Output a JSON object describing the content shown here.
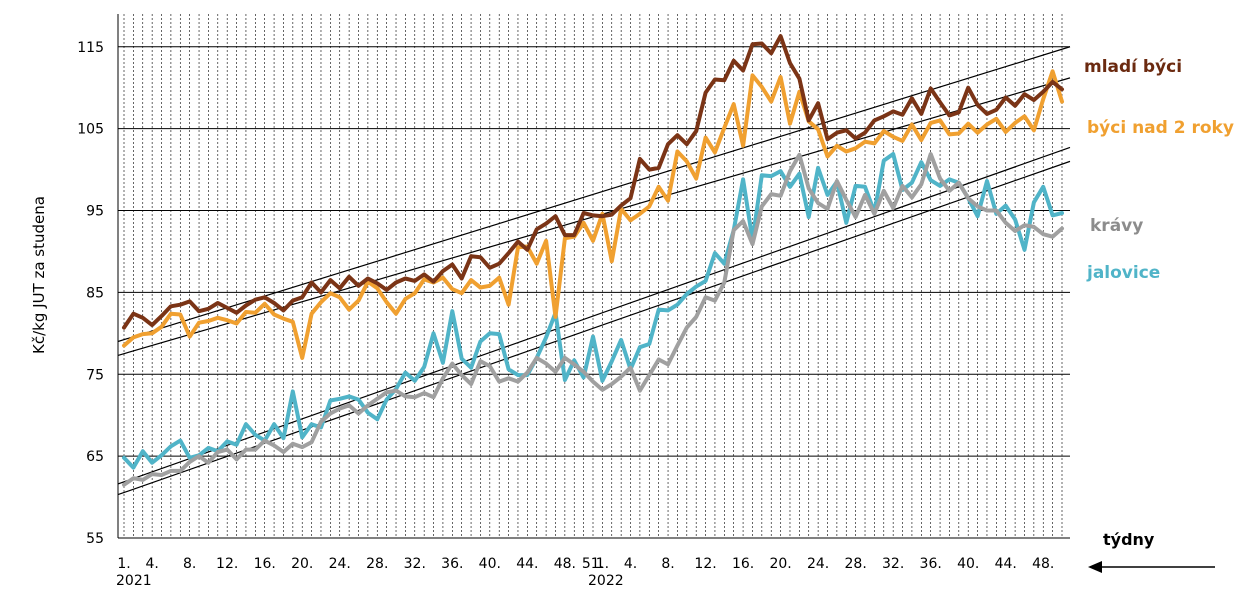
{
  "chart_data": {
    "type": "line",
    "ylabel": "Kč/kg JUT za studena",
    "ylim": [
      55,
      119
    ],
    "yticks": [
      "55",
      "65",
      "75",
      "85",
      "95",
      "105",
      "115"
    ],
    "xtick_labels": [
      "1.",
      "4.",
      "8.",
      "12.",
      "16.",
      "20.",
      "24.",
      "28.",
      "32.",
      "36.",
      "40.",
      "44.",
      "48.",
      "51.",
      "1.",
      "4.",
      "8.",
      "12.",
      "16.",
      "20.",
      "24.",
      "28.",
      "32.",
      "36.",
      "40.",
      "44.",
      "48."
    ],
    "year_labels": [
      "2021",
      "2022"
    ],
    "axis_caption": "týdny",
    "grid": true,
    "legend_placement": "right",
    "series": [
      {
        "name": "mladí býci",
        "color": "#7b3416",
        "values": [
          80.7,
          82.4,
          81.9,
          81.0,
          82.1,
          83.3,
          83.5,
          83.9,
          82.7,
          83.0,
          83.7,
          83.1,
          82.5,
          83.4,
          84.1,
          84.4,
          83.7,
          82.8,
          84.0,
          84.4,
          86.2,
          85.0,
          86.5,
          85.5,
          86.9,
          85.8,
          86.7,
          86.1,
          85.3,
          86.2,
          86.7,
          86.4,
          87.2,
          86.3,
          87.6,
          88.4,
          86.7,
          89.4,
          89.3,
          88.0,
          88.5,
          89.8,
          91.2,
          90.2,
          92.7,
          93.4,
          94.3,
          92.0,
          92.0,
          94.7,
          94.4,
          94.3,
          94.5,
          95.6,
          96.5,
          101.3,
          100.0,
          100.2,
          103.1,
          104.2,
          103.1,
          104.7,
          109.4,
          111.0,
          110.9,
          113.3,
          112.1,
          115.3,
          115.4,
          114.2,
          116.3,
          113.0,
          111.1,
          106.0,
          108.1,
          103.7,
          104.5,
          104.8,
          103.8,
          104.5,
          106.0,
          106.5,
          107.1,
          106.7,
          108.7,
          106.8,
          109.9,
          108.2,
          106.6,
          107.0,
          110.0,
          107.9,
          106.8,
          107.3,
          108.8,
          107.8,
          109.2,
          108.5,
          109.5,
          110.7,
          109.8
        ]
      },
      {
        "name": "býci nad 2 roky",
        "color": "#f0a030",
        "values": [
          78.5,
          79.5,
          79.9,
          80.0,
          80.8,
          82.4,
          82.3,
          79.6,
          81.3,
          81.5,
          81.9,
          81.6,
          81.2,
          82.6,
          82.5,
          83.6,
          82.3,
          81.8,
          81.4,
          77.0,
          82.4,
          83.8,
          84.9,
          84.4,
          82.9,
          84.0,
          86.3,
          85.5,
          83.8,
          82.4,
          84.2,
          84.9,
          86.6,
          86.2,
          86.8,
          85.4,
          84.9,
          86.5,
          85.6,
          85.8,
          86.8,
          83.5,
          90.5,
          90.6,
          88.5,
          91.3,
          82.0,
          91.6,
          91.8,
          93.5,
          91.3,
          94.6,
          88.8,
          95.2,
          93.8,
          94.6,
          95.5,
          97.9,
          96.2,
          102.2,
          101.0,
          98.9,
          103.9,
          102.1,
          105.1,
          108.0,
          102.9,
          111.5,
          110.1,
          108.3,
          111.3,
          105.6,
          109.5,
          105.9,
          104.9,
          101.6,
          102.9,
          102.2,
          102.6,
          103.4,
          103.2,
          104.7,
          104.0,
          103.5,
          105.5,
          103.6,
          105.7,
          106.0,
          104.3,
          104.4,
          105.6,
          104.5,
          105.5,
          106.2,
          104.6,
          105.7,
          106.5,
          104.8,
          108.6,
          112.0,
          108.3
        ]
      },
      {
        "name": "krávy",
        "color": "#a0a0a0",
        "values": [
          61.5,
          62.3,
          62.1,
          62.8,
          62.7,
          63.2,
          63.2,
          64.3,
          65.0,
          64.2,
          65.5,
          65.8,
          64.6,
          65.8,
          65.8,
          66.9,
          66.3,
          65.5,
          66.5,
          66.1,
          66.7,
          69.2,
          70.2,
          70.8,
          71.2,
          70.2,
          71.2,
          72.0,
          72.8,
          73.0,
          72.3,
          72.2,
          72.7,
          72.2,
          74.5,
          76.3,
          74.9,
          73.8,
          76.6,
          76.0,
          74.1,
          74.5,
          74.1,
          75.2,
          77.0,
          76.3,
          75.3,
          77.0,
          76.2,
          75.3,
          74.1,
          73.1,
          73.8,
          74.7,
          75.8,
          73.0,
          74.9,
          76.8,
          76.2,
          78.5,
          80.7,
          82.0,
          84.4,
          84.0,
          86.2,
          92.6,
          93.7,
          90.9,
          95.5,
          97.0,
          96.8,
          99.8,
          101.8,
          97.7,
          95.9,
          95.2,
          98.6,
          96.3,
          94.2,
          96.9,
          94.6,
          97.4,
          95.3,
          98.0,
          96.6,
          98.2,
          101.9,
          98.9,
          97.4,
          98.4,
          96.5,
          95.5,
          95.0,
          95.0,
          93.5,
          92.5,
          93.2,
          93.0,
          92.1,
          91.8,
          92.8
        ]
      },
      {
        "name": "jalovice",
        "color": "#50b4c8",
        "values": [
          64.8,
          63.6,
          65.6,
          64.2,
          65.1,
          66.2,
          66.9,
          64.8,
          65.1,
          66.0,
          65.6,
          66.8,
          66.4,
          68.9,
          67.6,
          66.9,
          68.9,
          67.2,
          72.9,
          67.3,
          68.9,
          68.5,
          71.8,
          72.0,
          72.3,
          71.9,
          70.3,
          69.5,
          71.9,
          73.2,
          75.2,
          74.2,
          75.9,
          80.0,
          76.4,
          82.7,
          76.9,
          75.8,
          79.0,
          80.0,
          79.9,
          75.6,
          74.9,
          74.9,
          77.0,
          79.5,
          82.5,
          74.3,
          76.7,
          74.6,
          79.6,
          74.2,
          76.6,
          79.2,
          75.6,
          78.3,
          78.7,
          82.9,
          82.8,
          83.5,
          84.8,
          85.7,
          86.4,
          89.8,
          88.5,
          92.6,
          98.8,
          91.4,
          99.3,
          99.2,
          99.8,
          97.9,
          99.5,
          94.2,
          100.2,
          96.9,
          98.5,
          93.5,
          98.0,
          97.9,
          94.8,
          101.1,
          101.9,
          97.5,
          98.4,
          100.9,
          98.7,
          98.0,
          98.8,
          98.4,
          96.5,
          94.3,
          98.6,
          94.6,
          95.6,
          93.9,
          90.2,
          96.0,
          97.9,
          94.4,
          94.7
        ]
      }
    ],
    "trendlines": [
      {
        "for": "mladí býci",
        "y_start": 79.0,
        "y_end": 115.0
      },
      {
        "for": "býci nad 2 roky",
        "y_start": 77.3,
        "y_end": 111.2
      },
      {
        "for": "krávy",
        "y_start": 61.6,
        "y_end": 102.7
      },
      {
        "for": "jalovice",
        "y_start": 60.3,
        "y_end": 101.0
      }
    ]
  }
}
